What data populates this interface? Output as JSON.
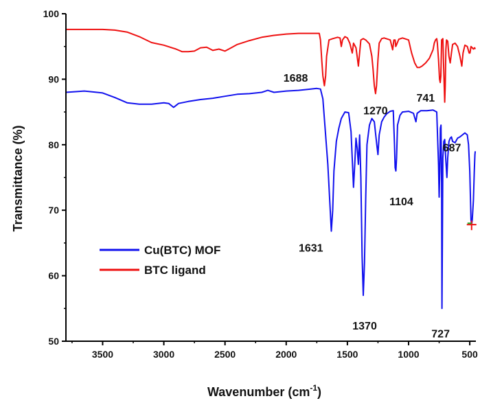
{
  "chart_data": {
    "type": "line",
    "xlabel": "Wavenumber (cm",
    "xlabel_sup": "-1",
    "xlabel_end": ")",
    "ylabel": "Transmittance (%)",
    "xlim": [
      3800,
      450
    ],
    "ylim": [
      50,
      100
    ],
    "x_ticks": [
      3500,
      3000,
      2500,
      2000,
      1500,
      1000,
      500
    ],
    "y_ticks": [
      50,
      60,
      70,
      80,
      90,
      100
    ],
    "grid": false,
    "legend_position": "lower-left",
    "series": [
      {
        "name": "Cu(BTC) MOF",
        "color": "#1010ee",
        "points": [
          [
            3800,
            88.0
          ],
          [
            3650,
            88.2
          ],
          [
            3500,
            87.9
          ],
          [
            3400,
            87.2
          ],
          [
            3300,
            86.4
          ],
          [
            3200,
            86.2
          ],
          [
            3100,
            86.2
          ],
          [
            3000,
            86.4
          ],
          [
            2960,
            86.3
          ],
          [
            2920,
            85.7
          ],
          [
            2880,
            86.3
          ],
          [
            2800,
            86.6
          ],
          [
            2700,
            86.9
          ],
          [
            2600,
            87.1
          ],
          [
            2500,
            87.4
          ],
          [
            2400,
            87.7
          ],
          [
            2300,
            87.8
          ],
          [
            2200,
            88.0
          ],
          [
            2150,
            88.3
          ],
          [
            2100,
            88.0
          ],
          [
            2000,
            88.2
          ],
          [
            1900,
            88.3
          ],
          [
            1800,
            88.5
          ],
          [
            1750,
            88.6
          ],
          [
            1720,
            88.5
          ],
          [
            1700,
            87.0
          ],
          [
            1680,
            82.0
          ],
          [
            1660,
            77.0
          ],
          [
            1640,
            70.0
          ],
          [
            1631,
            66.8
          ],
          [
            1620,
            70.0
          ],
          [
            1610,
            76.0
          ],
          [
            1590,
            80.5
          ],
          [
            1570,
            82.5
          ],
          [
            1550,
            84.0
          ],
          [
            1520,
            85.0
          ],
          [
            1490,
            84.9
          ],
          [
            1470,
            82.0
          ],
          [
            1450,
            73.5
          ],
          [
            1440,
            77.0
          ],
          [
            1430,
            81.0
          ],
          [
            1420,
            79.5
          ],
          [
            1410,
            77.0
          ],
          [
            1400,
            81.5
          ],
          [
            1390,
            75.0
          ],
          [
            1380,
            63.0
          ],
          [
            1370,
            57.0
          ],
          [
            1360,
            62.0
          ],
          [
            1350,
            72.0
          ],
          [
            1340,
            80.0
          ],
          [
            1320,
            83.0
          ],
          [
            1300,
            84.0
          ],
          [
            1280,
            83.5
          ],
          [
            1260,
            80.0
          ],
          [
            1250,
            78.5
          ],
          [
            1240,
            81.5
          ],
          [
            1220,
            83.5
          ],
          [
            1200,
            84.2
          ],
          [
            1180,
            84.7
          ],
          [
            1150,
            85.1
          ],
          [
            1125,
            85.2
          ],
          [
            1115,
            80.0
          ],
          [
            1110,
            76.5
          ],
          [
            1104,
            76.0
          ],
          [
            1098,
            78.0
          ],
          [
            1090,
            83.0
          ],
          [
            1070,
            84.5
          ],
          [
            1050,
            85.0
          ],
          [
            1000,
            85.1
          ],
          [
            960,
            84.8
          ],
          [
            940,
            83.5
          ],
          [
            930,
            84.8
          ],
          [
            900,
            85.2
          ],
          [
            850,
            85.2
          ],
          [
            800,
            85.3
          ],
          [
            770,
            85.0
          ],
          [
            755,
            77.0
          ],
          [
            750,
            72.0
          ],
          [
            745,
            76.0
          ],
          [
            740,
            82.5
          ],
          [
            735,
            83.0
          ],
          [
            730,
            74.0
          ],
          [
            727,
            55.0
          ],
          [
            724,
            65.0
          ],
          [
            720,
            78.0
          ],
          [
            712,
            80.5
          ],
          [
            705,
            80.8
          ],
          [
            695,
            77.5
          ],
          [
            687,
            75.0
          ],
          [
            680,
            78.0
          ],
          [
            670,
            80.5
          ],
          [
            660,
            81.0
          ],
          [
            650,
            81.2
          ],
          [
            640,
            80.5
          ],
          [
            620,
            80.3
          ],
          [
            600,
            81.0
          ],
          [
            580,
            81.2
          ],
          [
            560,
            81.5
          ],
          [
            540,
            81.8
          ],
          [
            520,
            81.5
          ],
          [
            510,
            80.0
          ],
          [
            500,
            76.0
          ],
          [
            490,
            68.5
          ],
          [
            485,
            67.8
          ],
          [
            480,
            68.5
          ],
          [
            470,
            71.5
          ],
          [
            463,
            76.0
          ],
          [
            458,
            78.5
          ],
          [
            455,
            79.0
          ]
        ]
      },
      {
        "name": "BTC ligand",
        "color": "#ee1010",
        "points": [
          [
            3800,
            97.6
          ],
          [
            3500,
            97.6
          ],
          [
            3400,
            97.5
          ],
          [
            3300,
            97.2
          ],
          [
            3200,
            96.5
          ],
          [
            3100,
            95.6
          ],
          [
            3000,
            95.2
          ],
          [
            2900,
            94.6
          ],
          [
            2850,
            94.2
          ],
          [
            2800,
            94.2
          ],
          [
            2750,
            94.3
          ],
          [
            2700,
            94.8
          ],
          [
            2650,
            94.9
          ],
          [
            2600,
            94.4
          ],
          [
            2550,
            94.6
          ],
          [
            2500,
            94.3
          ],
          [
            2450,
            94.8
          ],
          [
            2400,
            95.3
          ],
          [
            2300,
            95.9
          ],
          [
            2200,
            96.4
          ],
          [
            2100,
            96.7
          ],
          [
            2000,
            96.9
          ],
          [
            1900,
            97.0
          ],
          [
            1800,
            97.0
          ],
          [
            1730,
            97.0
          ],
          [
            1720,
            96.0
          ],
          [
            1710,
            93.0
          ],
          [
            1700,
            90.5
          ],
          [
            1688,
            89.0
          ],
          [
            1678,
            90.5
          ],
          [
            1670,
            93.5
          ],
          [
            1650,
            96.0
          ],
          [
            1620,
            96.2
          ],
          [
            1580,
            96.4
          ],
          [
            1560,
            96.3
          ],
          [
            1550,
            95.0
          ],
          [
            1540,
            96.0
          ],
          [
            1520,
            96.5
          ],
          [
            1500,
            96.3
          ],
          [
            1480,
            95.5
          ],
          [
            1460,
            94.0
          ],
          [
            1450,
            95.5
          ],
          [
            1430,
            94.8
          ],
          [
            1420,
            93.5
          ],
          [
            1410,
            92.0
          ],
          [
            1400,
            94.0
          ],
          [
            1390,
            96.0
          ],
          [
            1370,
            96.2
          ],
          [
            1350,
            96.0
          ],
          [
            1320,
            95.4
          ],
          [
            1300,
            93.5
          ],
          [
            1290,
            91.5
          ],
          [
            1280,
            89.0
          ],
          [
            1270,
            87.8
          ],
          [
            1262,
            89.0
          ],
          [
            1250,
            93.0
          ],
          [
            1240,
            95.5
          ],
          [
            1220,
            96.2
          ],
          [
            1200,
            96.3
          ],
          [
            1150,
            96.0
          ],
          [
            1130,
            94.5
          ],
          [
            1120,
            96.0
          ],
          [
            1110,
            96.0
          ],
          [
            1105,
            95.0
          ],
          [
            1100,
            95.2
          ],
          [
            1080,
            96.1
          ],
          [
            1050,
            96.3
          ],
          [
            1000,
            96.0
          ],
          [
            975,
            94.0
          ],
          [
            950,
            92.5
          ],
          [
            930,
            91.8
          ],
          [
            910,
            91.8
          ],
          [
            890,
            92.0
          ],
          [
            860,
            92.5
          ],
          [
            830,
            93.2
          ],
          [
            800,
            94.5
          ],
          [
            790,
            95.5
          ],
          [
            780,
            96.0
          ],
          [
            770,
            96.2
          ],
          [
            765,
            95.5
          ],
          [
            755,
            93.0
          ],
          [
            747,
            90.0
          ],
          [
            741,
            89.5
          ],
          [
            736,
            90.5
          ],
          [
            730,
            96.0
          ],
          [
            720,
            96.2
          ],
          [
            712,
            91.0
          ],
          [
            705,
            86.5
          ],
          [
            700,
            89.0
          ],
          [
            695,
            94.5
          ],
          [
            690,
            96.0
          ],
          [
            680,
            95.8
          ],
          [
            670,
            93.5
          ],
          [
            660,
            92.5
          ],
          [
            650,
            94.0
          ],
          [
            640,
            95.3
          ],
          [
            620,
            95.5
          ],
          [
            600,
            95.0
          ],
          [
            580,
            93.5
          ],
          [
            565,
            92.0
          ],
          [
            555,
            94.0
          ],
          [
            540,
            95.2
          ],
          [
            520,
            95.0
          ],
          [
            505,
            94.0
          ],
          [
            498,
            94.0
          ],
          [
            490,
            95.0
          ],
          [
            480,
            94.8
          ],
          [
            470,
            94.6
          ],
          [
            460,
            94.8
          ],
          [
            455,
            94.6
          ]
        ]
      }
    ],
    "annotations": [
      {
        "text": "1688",
        "x": 1688,
        "y": 89.0
      },
      {
        "text": "1270",
        "x": 1270,
        "y": 87.8
      },
      {
        "text": "741",
        "x": 741,
        "y": 89.5
      },
      {
        "text": "687",
        "x": 687,
        "y": 75.0
      },
      {
        "text": "1104",
        "x": 1104,
        "y": 76.0
      },
      {
        "text": "1631",
        "x": 1631,
        "y": 66.8
      },
      {
        "text": "1370",
        "x": 1370,
        "y": 57.0
      },
      {
        "text": "727",
        "x": 727,
        "y": 55.0
      }
    ]
  }
}
